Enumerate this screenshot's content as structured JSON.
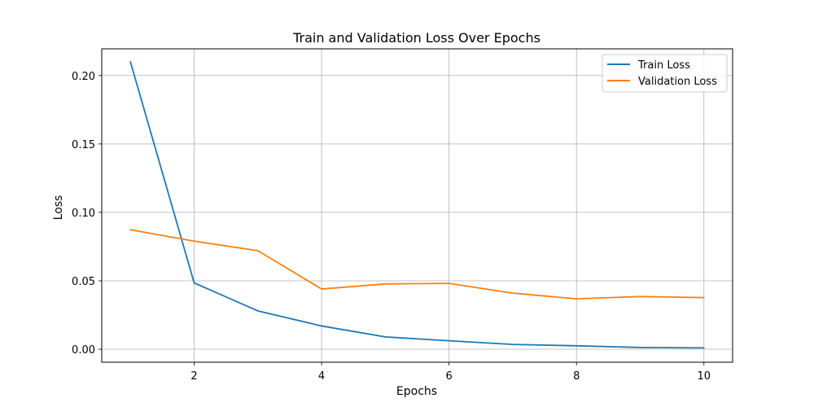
{
  "chart_data": {
    "type": "line",
    "title": "Train and Validation Loss Over Epochs",
    "xlabel": "Epochs",
    "ylabel": "Loss",
    "xlim": [
      0.55,
      10.45
    ],
    "ylim": [
      -0.0095,
      0.2195
    ],
    "xticks": [
      2,
      4,
      6,
      8,
      10
    ],
    "yticks": [
      0.0,
      0.05,
      0.1,
      0.15,
      0.2
    ],
    "xtick_labels": [
      "2",
      "4",
      "6",
      "8",
      "10"
    ],
    "ytick_labels": [
      "0.00",
      "0.05",
      "0.10",
      "0.15",
      "0.20"
    ],
    "grid": true,
    "legend_position": "top-right",
    "x": [
      1,
      2,
      3,
      4,
      5,
      6,
      7,
      8,
      9,
      10
    ],
    "series": [
      {
        "name": "Train Loss",
        "color": "#1f77b4",
        "values": [
          0.21,
          0.0485,
          0.028,
          0.017,
          0.009,
          0.0062,
          0.0035,
          0.0025,
          0.0013,
          0.001
        ]
      },
      {
        "name": "Validation Loss",
        "color": "#ff7f0e",
        "values": [
          0.0873,
          0.079,
          0.072,
          0.044,
          0.0477,
          0.0481,
          0.041,
          0.0368,
          0.0385,
          0.0377
        ]
      }
    ]
  }
}
